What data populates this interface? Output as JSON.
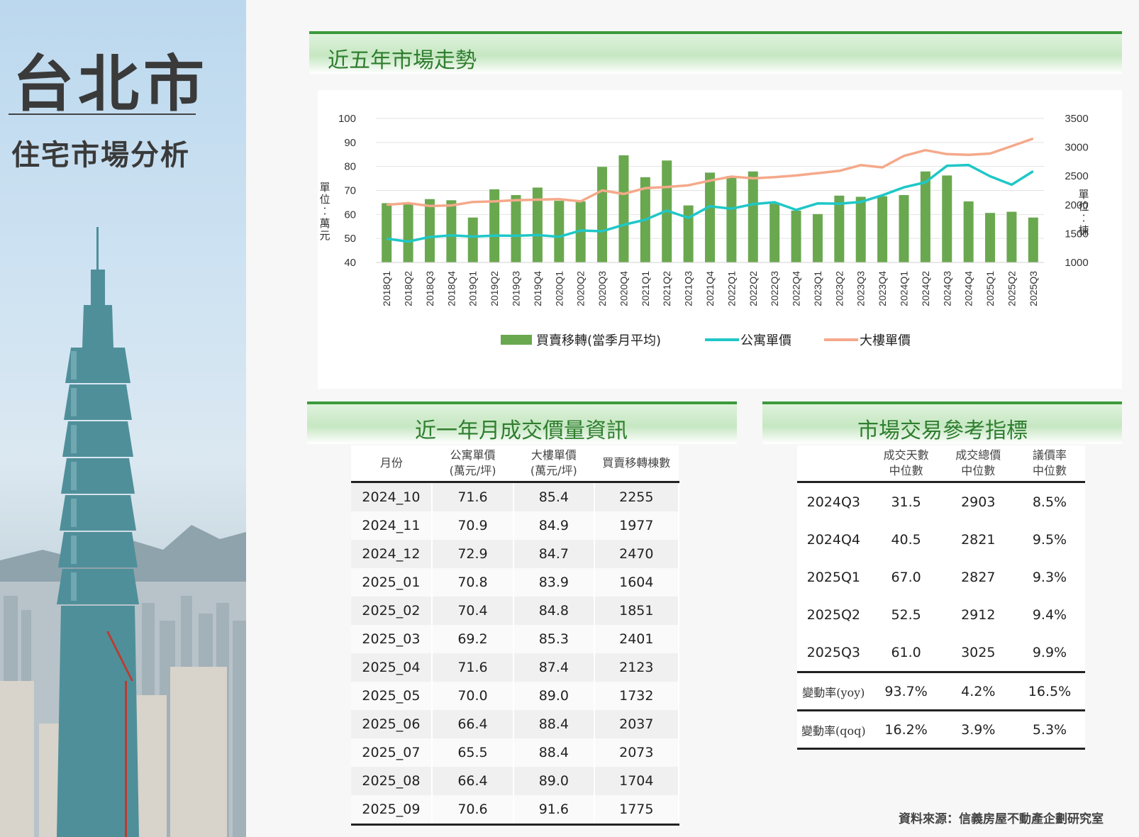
{
  "sidebar": {
    "city": "台北市",
    "subtitle": "住宅市場分析"
  },
  "headers": {
    "trend": "近五年市場走勢",
    "monthly": "近一年月成交價量資訊",
    "indicators": "市場交易參考指標"
  },
  "chart_data": {
    "type": "bar+line",
    "categories": [
      "2018Q1",
      "2018Q2",
      "2018Q3",
      "2018Q4",
      "2019Q1",
      "2019Q2",
      "2019Q3",
      "2019Q4",
      "2020Q1",
      "2020Q2",
      "2020Q3",
      "2020Q4",
      "2021Q1",
      "2021Q2",
      "2021Q3",
      "2021Q4",
      "2022Q1",
      "2022Q2",
      "2022Q3",
      "2022Q4",
      "2023Q1",
      "2023Q2",
      "2023Q3",
      "2023Q4",
      "2024Q1",
      "2024Q2",
      "2024Q3",
      "2024Q4",
      "2025Q1",
      "2025Q2",
      "2025Q3"
    ],
    "series": [
      {
        "name": "買賣移轉(當季月平均)",
        "type": "bar",
        "axis": "right",
        "color": "#6aa84f",
        "values": [
          2030,
          2040,
          2100,
          2080,
          1780,
          2270,
          2170,
          2300,
          2070,
          2060,
          2660,
          2860,
          2480,
          2770,
          1990,
          2560,
          2500,
          2580,
          2020,
          1900,
          1840,
          2160,
          2140,
          2150,
          2170,
          2580,
          2510,
          2060,
          1860,
          1880,
          1780
        ]
      },
      {
        "name": "公寓單價",
        "type": "line",
        "axis": "left",
        "color": "#1fc7c7",
        "values": [
          49.9,
          48.7,
          50.6,
          51.3,
          50.8,
          51.2,
          51.1,
          51.4,
          50.7,
          53.3,
          53.0,
          55.7,
          57.8,
          61.6,
          58.6,
          63.4,
          62.4,
          64.3,
          65.1,
          61.9,
          64.6,
          64.5,
          65.2,
          68.0,
          71.3,
          73.4,
          80.3,
          80.6,
          75.9,
          72.4,
          78.0
        ]
      },
      {
        "name": "大樓單價",
        "type": "line",
        "axis": "right",
        "color": "#f4a98a",
        "values": [
          2000,
          2030,
          1980,
          1990,
          2050,
          2060,
          2080,
          2090,
          2100,
          2060,
          2250,
          2190,
          2290,
          2310,
          2340,
          2420,
          2490,
          2460,
          2480,
          2510,
          2550,
          2590,
          2690,
          2650,
          2850,
          2950,
          2880,
          2870,
          2890,
          3020,
          3150
        ]
      }
    ],
    "left_axis": {
      "label": "單位：萬元",
      "min": 40,
      "max": 100,
      "ticks": [
        100,
        90,
        80,
        70,
        60,
        50,
        40
      ]
    },
    "right_axis": {
      "label": "單位：棟",
      "min": 1000,
      "max": 3500,
      "ticks": [
        3500,
        3000,
        2500,
        2000,
        1500,
        1000
      ]
    },
    "legend_position": "bottom",
    "grid": true
  },
  "monthly_table": {
    "headers": [
      {
        "l1": "月份",
        "l2": ""
      },
      {
        "l1": "公寓單價",
        "l2": "(萬元/坪)"
      },
      {
        "l1": "大樓單價",
        "l2": "(萬元/坪)"
      },
      {
        "l1": "買賣移轉棟數",
        "l2": ""
      }
    ],
    "rows": [
      [
        "2024_10",
        "71.6",
        "85.4",
        "2255"
      ],
      [
        "2024_11",
        "70.9",
        "84.9",
        "1977"
      ],
      [
        "2024_12",
        "72.9",
        "84.7",
        "2470"
      ],
      [
        "2025_01",
        "70.8",
        "83.9",
        "1604"
      ],
      [
        "2025_02",
        "70.4",
        "84.8",
        "1851"
      ],
      [
        "2025_03",
        "69.2",
        "85.3",
        "2401"
      ],
      [
        "2025_04",
        "71.6",
        "87.4",
        "2123"
      ],
      [
        "2025_05",
        "70.0",
        "89.0",
        "1732"
      ],
      [
        "2025_06",
        "66.4",
        "88.4",
        "2037"
      ],
      [
        "2025_07",
        "65.5",
        "88.4",
        "2073"
      ],
      [
        "2025_08",
        "66.4",
        "89.0",
        "1704"
      ],
      [
        "2025_09",
        "70.6",
        "91.6",
        "1775"
      ]
    ]
  },
  "indicator_table": {
    "headers": [
      {
        "l1": "",
        "l2": ""
      },
      {
        "l1": "成交天數",
        "l2": "中位數"
      },
      {
        "l1": "成交總價",
        "l2": "中位數"
      },
      {
        "l1": "議價率",
        "l2": "中位數"
      }
    ],
    "rows": [
      [
        "2024Q3",
        "31.5",
        "2903",
        "8.5%"
      ],
      [
        "2024Q4",
        "40.5",
        "2821",
        "9.5%"
      ],
      [
        "2025Q1",
        "67.0",
        "2827",
        "9.3%"
      ],
      [
        "2025Q2",
        "52.5",
        "2912",
        "9.4%"
      ],
      [
        "2025Q3",
        "61.0",
        "3025",
        "9.9%"
      ]
    ],
    "changes": [
      [
        "變動率(yoy)",
        "93.7%",
        "4.2%",
        "16.5%"
      ],
      [
        "變動率(qoq)",
        "16.2%",
        "3.9%",
        "5.3%"
      ]
    ]
  },
  "source": "資料來源：信義房屋不動產企劃研究室"
}
